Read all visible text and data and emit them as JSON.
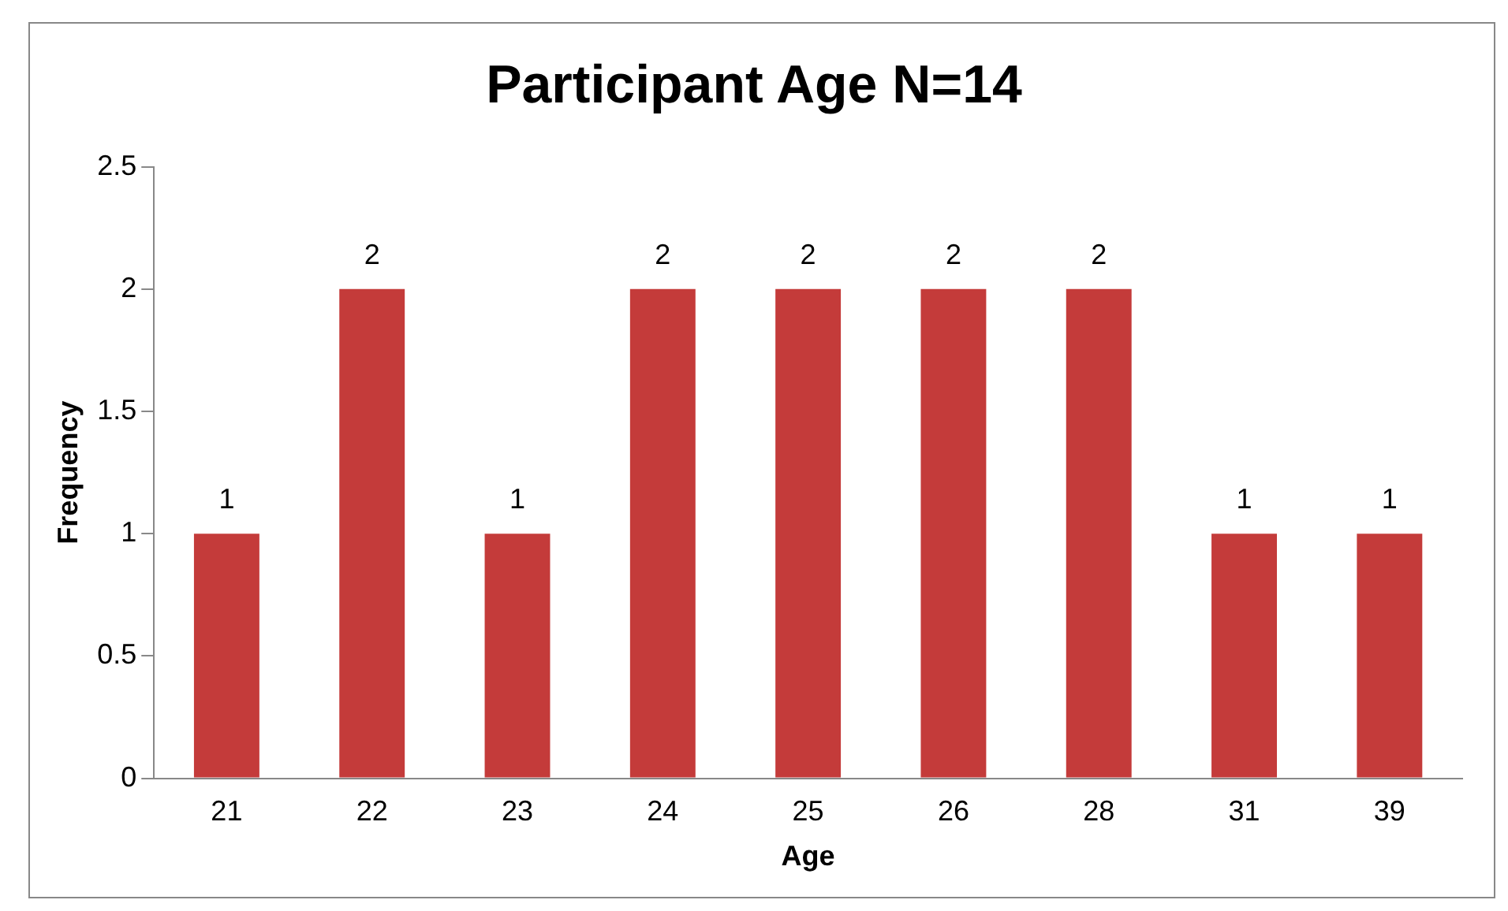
{
  "chart_data": {
    "type": "bar",
    "title": "Participant Age N=14",
    "xlabel": "Age",
    "ylabel": "Frequency",
    "categories": [
      "21",
      "22",
      "23",
      "24",
      "25",
      "26",
      "28",
      "31",
      "39"
    ],
    "values": [
      1,
      2,
      1,
      2,
      2,
      2,
      2,
      1,
      1
    ],
    "color": "#c43b3a",
    "ylim": [
      0,
      2.5
    ],
    "yticks": [
      0,
      0.5,
      1,
      1.5,
      2,
      2.5
    ],
    "grid": false,
    "legend": false,
    "data_labels": true
  }
}
